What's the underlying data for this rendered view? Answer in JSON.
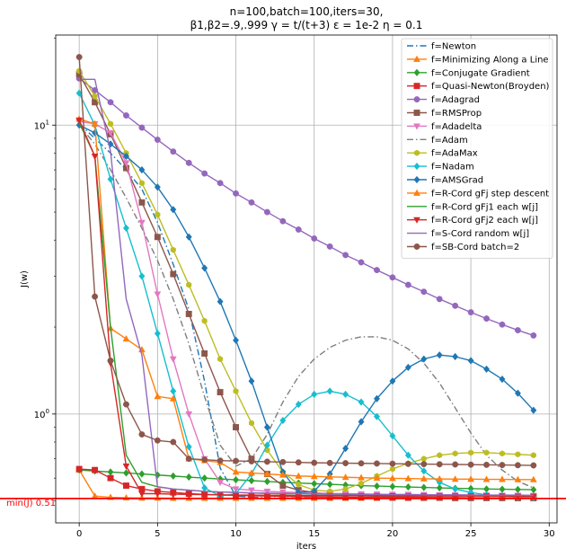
{
  "chart_data": {
    "type": "line",
    "title": [
      "n=100,batch=100,iters=30,",
      "β1,β2=.9,.999 γ = t/(t+3) ε = 1e-2 η = 0.1"
    ],
    "xlabel": "iters",
    "ylabel": "J(w)",
    "xscale": "linear",
    "yscale": "log",
    "xlim": [
      -1.5,
      30.5
    ],
    "ylim": [
      0.42,
      20.5
    ],
    "xticks": [
      0,
      5,
      10,
      15,
      20,
      25,
      30
    ],
    "yticks": [
      1,
      10
    ],
    "ytick_labels": [
      "10^0",
      "10^1"
    ],
    "grid": true,
    "legend_position": "top-right",
    "hline": {
      "y": 0.51,
      "label": "min(J) 0.51",
      "color": "#ff0000"
    },
    "series": [
      {
        "name": "f=Newton",
        "color": "#1f77b4",
        "dash": "dashdot",
        "marker": "none",
        "x": [
          0,
          1,
          2,
          3,
          4,
          5,
          6,
          7,
          8,
          9,
          10,
          11,
          12,
          13,
          14,
          15,
          16,
          17,
          18,
          19,
          20,
          21,
          22,
          23,
          24,
          25,
          26,
          27,
          28,
          29
        ],
        "y": [
          10.1,
          9.0,
          8.0,
          7.0,
          6.0,
          4.6,
          3.3,
          2.3,
          1.3,
          0.65,
          0.52,
          0.515,
          0.513,
          0.512,
          0.512,
          0.512,
          0.511,
          0.511,
          0.511,
          0.511,
          0.511,
          0.511,
          0.511,
          0.511,
          0.511,
          0.511,
          0.511,
          0.511,
          0.511,
          0.511
        ]
      },
      {
        "name": "f=Minimizing Along a Line",
        "color": "#ff7f0e",
        "dash": "solid",
        "marker": "triangle-up",
        "x": [
          0,
          1,
          2,
          3,
          4,
          5,
          6,
          7,
          8,
          9,
          10,
          11,
          12,
          13,
          14,
          15,
          16,
          17,
          18,
          19,
          20,
          21,
          22,
          23,
          24,
          25,
          26,
          27,
          28,
          29
        ],
        "y": [
          0.64,
          0.52,
          0.515,
          0.513,
          0.512,
          0.512,
          0.511,
          0.511,
          0.511,
          0.511,
          0.511,
          0.511,
          0.511,
          0.511,
          0.511,
          0.511,
          0.511,
          0.511,
          0.511,
          0.511,
          0.511,
          0.511,
          0.511,
          0.511,
          0.511,
          0.511,
          0.511,
          0.511,
          0.511,
          0.511
        ]
      },
      {
        "name": "f=Conjugate Gradient",
        "color": "#2ca02c",
        "dash": "solid",
        "marker": "diamond",
        "x": [
          0,
          1,
          2,
          3,
          4,
          5,
          6,
          7,
          8,
          9,
          10,
          11,
          12,
          13,
          14,
          15,
          16,
          17,
          18,
          19,
          20,
          21,
          22,
          23,
          24,
          25,
          26,
          27,
          28,
          29
        ],
        "y": [
          0.64,
          0.635,
          0.63,
          0.625,
          0.62,
          0.615,
          0.61,
          0.605,
          0.6,
          0.596,
          0.592,
          0.588,
          0.584,
          0.58,
          0.577,
          0.574,
          0.571,
          0.568,
          0.565,
          0.563,
          0.561,
          0.559,
          0.557,
          0.555,
          0.553,
          0.552,
          0.55,
          0.549,
          0.548,
          0.547
        ]
      },
      {
        "name": "f=Quasi-Newton(Broyden)",
        "color": "#d62728",
        "dash": "solid",
        "marker": "square",
        "x": [
          0,
          1,
          2,
          3,
          4,
          5,
          6,
          7,
          8,
          9,
          10,
          11,
          12,
          13,
          14,
          15,
          16,
          17,
          18,
          19,
          20,
          21,
          22,
          23,
          24,
          25,
          26,
          27,
          28,
          29
        ],
        "y": [
          0.645,
          0.64,
          0.6,
          0.565,
          0.55,
          0.54,
          0.535,
          0.53,
          0.527,
          0.525,
          0.523,
          0.521,
          0.52,
          0.519,
          0.518,
          0.517,
          0.516,
          0.515,
          0.515,
          0.514,
          0.514,
          0.513,
          0.513,
          0.513,
          0.512,
          0.512,
          0.512,
          0.512,
          0.512,
          0.512
        ]
      },
      {
        "name": "f=Adagrad",
        "color": "#9467bd",
        "dash": "solid",
        "marker": "circle",
        "x": [
          0,
          1,
          2,
          3,
          4,
          5,
          6,
          7,
          8,
          9,
          10,
          11,
          12,
          13,
          14,
          15,
          16,
          17,
          18,
          19,
          20,
          21,
          22,
          23,
          24,
          25,
          26,
          27,
          28,
          29
        ],
        "y": [
          14.5,
          13.2,
          12.0,
          10.8,
          9.8,
          8.9,
          8.1,
          7.4,
          6.8,
          6.3,
          5.8,
          5.4,
          5.0,
          4.65,
          4.35,
          4.05,
          3.8,
          3.55,
          3.35,
          3.15,
          2.97,
          2.8,
          2.65,
          2.5,
          2.37,
          2.25,
          2.14,
          2.04,
          1.95,
          1.87
        ]
      },
      {
        "name": "f=RMSProp",
        "color": "#8c564b",
        "dash": "solid",
        "marker": "square",
        "x": [
          0,
          1,
          2,
          3,
          4,
          5,
          6,
          7,
          8,
          9,
          10,
          11,
          12,
          13,
          14,
          15,
          16,
          17,
          18,
          19,
          20,
          21,
          22,
          23,
          24,
          25,
          26,
          27,
          28,
          29
        ],
        "y": [
          15.0,
          12.0,
          9.3,
          7.1,
          5.4,
          4.1,
          3.05,
          2.22,
          1.62,
          1.19,
          0.9,
          0.7,
          0.62,
          0.565,
          0.545,
          0.535,
          0.528,
          0.524,
          0.521,
          0.519,
          0.517,
          0.516,
          0.515,
          0.514,
          0.514,
          0.513,
          0.513,
          0.513,
          0.512,
          0.512
        ]
      },
      {
        "name": "f=Adadelta",
        "color": "#e377c2",
        "dash": "solid",
        "marker": "triangle-down",
        "x": [
          0,
          1,
          2,
          3,
          4,
          5,
          6,
          7,
          8,
          9,
          10,
          11,
          12,
          13,
          14,
          15,
          16,
          17,
          18,
          19,
          20,
          21,
          22,
          23,
          24,
          25,
          26,
          27,
          28,
          29
        ],
        "y": [
          10.3,
          10.1,
          9.4,
          7.4,
          4.6,
          2.6,
          1.55,
          1.0,
          0.7,
          0.58,
          0.55,
          0.545,
          0.54,
          0.537,
          0.535,
          0.533,
          0.531,
          0.53,
          0.529,
          0.528,
          0.527,
          0.527,
          0.526,
          0.525,
          0.525,
          0.524,
          0.524,
          0.523,
          0.523,
          0.522
        ]
      },
      {
        "name": "f=Adam",
        "color": "#7f7f7f",
        "dash": "dashdot",
        "marker": "none",
        "x": [
          0,
          1,
          2,
          3,
          4,
          5,
          6,
          7,
          8,
          9,
          10,
          11,
          12,
          13,
          14,
          15,
          16,
          17,
          18,
          19,
          20,
          21,
          22,
          23,
          24,
          25,
          26,
          27,
          28,
          29
        ],
        "y": [
          10.0,
          8.6,
          7.0,
          5.6,
          4.4,
          3.4,
          2.5,
          1.75,
          1.15,
          0.78,
          0.66,
          0.7,
          0.85,
          1.1,
          1.35,
          1.55,
          1.7,
          1.8,
          1.85,
          1.85,
          1.8,
          1.68,
          1.5,
          1.28,
          1.05,
          0.86,
          0.72,
          0.64,
          0.585,
          0.555
        ]
      },
      {
        "name": "f=AdaMax",
        "color": "#bcbd22",
        "dash": "solid",
        "marker": "hexagon",
        "x": [
          0,
          1,
          2,
          3,
          4,
          5,
          6,
          7,
          8,
          9,
          10,
          11,
          12,
          13,
          14,
          15,
          16,
          17,
          18,
          19,
          20,
          21,
          22,
          23,
          24,
          25,
          26,
          27,
          28,
          29
        ],
        "y": [
          15.4,
          12.6,
          10.1,
          8.0,
          6.3,
          4.9,
          3.7,
          2.8,
          2.1,
          1.55,
          1.2,
          0.93,
          0.75,
          0.63,
          0.57,
          0.545,
          0.54,
          0.55,
          0.575,
          0.61,
          0.645,
          0.675,
          0.7,
          0.72,
          0.73,
          0.735,
          0.735,
          0.73,
          0.725,
          0.72
        ]
      },
      {
        "name": "f=Nadam",
        "color": "#17becf",
        "dash": "solid",
        "marker": "diamond",
        "x": [
          0,
          1,
          2,
          3,
          4,
          5,
          6,
          7,
          8,
          9,
          10,
          11,
          12,
          13,
          14,
          15,
          16,
          17,
          18,
          19,
          20,
          21,
          22,
          23,
          24,
          25,
          26,
          27,
          28,
          29
        ],
        "y": [
          12.9,
          10.0,
          6.5,
          4.4,
          3.0,
          1.9,
          1.2,
          0.77,
          0.555,
          0.52,
          0.53,
          0.62,
          0.78,
          0.95,
          1.08,
          1.17,
          1.2,
          1.17,
          1.1,
          0.98,
          0.84,
          0.72,
          0.635,
          0.58,
          0.55,
          0.535,
          0.525,
          0.52,
          0.517,
          0.515
        ]
      },
      {
        "name": "f=AMSGrad",
        "color": "#1f77b4",
        "dash": "solid",
        "marker": "diamond",
        "x": [
          0,
          1,
          2,
          3,
          4,
          5,
          6,
          7,
          8,
          9,
          10,
          11,
          12,
          13,
          14,
          15,
          16,
          17,
          18,
          19,
          20,
          21,
          22,
          23,
          24,
          25,
          26,
          27,
          28,
          29
        ],
        "y": [
          10.0,
          9.4,
          8.6,
          7.8,
          7.0,
          6.1,
          5.1,
          4.1,
          3.2,
          2.45,
          1.8,
          1.3,
          0.9,
          0.63,
          0.535,
          0.54,
          0.62,
          0.76,
          0.94,
          1.13,
          1.3,
          1.45,
          1.55,
          1.6,
          1.58,
          1.53,
          1.43,
          1.32,
          1.18,
          1.03
        ]
      },
      {
        "name": "f=R-Cord gFj step descent",
        "color": "#ff7f0e",
        "dash": "solid",
        "marker": "triangle-up",
        "x": [
          0,
          1,
          2,
          3,
          4,
          5,
          6,
          7,
          8,
          9,
          10,
          11,
          12,
          13,
          14,
          15,
          16,
          17,
          18,
          19,
          20,
          21,
          22,
          23,
          24,
          25,
          26,
          27,
          28,
          29
        ],
        "y": [
          10.5,
          10.1,
          1.98,
          1.82,
          1.67,
          1.15,
          1.13,
          0.7,
          0.69,
          0.68,
          0.63,
          0.625,
          0.62,
          0.615,
          0.61,
          0.608,
          0.606,
          0.604,
          0.602,
          0.6,
          0.599,
          0.598,
          0.597,
          0.596,
          0.595,
          0.595,
          0.594,
          0.594,
          0.593,
          0.593
        ]
      },
      {
        "name": "f=R-Cord gFj1 each w[j]",
        "color": "#2ca02c",
        "dash": "solid",
        "marker": "none",
        "x": [
          0,
          1,
          2,
          3,
          4,
          5,
          6,
          7,
          8,
          9,
          10,
          11,
          12,
          13,
          14,
          15,
          16,
          17,
          18,
          19,
          20,
          21,
          22,
          23,
          24,
          25,
          26,
          27,
          28,
          29
        ],
        "y": [
          10.2,
          7.8,
          2.0,
          0.72,
          0.58,
          0.56,
          0.55,
          0.545,
          0.54,
          0.537,
          0.535,
          0.533,
          0.531,
          0.53,
          0.529,
          0.528,
          0.527,
          0.526,
          0.525,
          0.524,
          0.524,
          0.523,
          0.523,
          0.522,
          0.522,
          0.522,
          0.521,
          0.521,
          0.521,
          0.521
        ]
      },
      {
        "name": "f=R-Cord gFj2 each w[j]",
        "color": "#d62728",
        "dash": "solid",
        "marker": "triangle-down",
        "x": [
          0,
          1,
          2,
          3,
          4,
          5,
          6,
          7,
          8,
          9,
          10,
          11,
          12,
          13,
          14,
          15,
          16,
          17,
          18,
          19,
          20,
          21,
          22,
          23,
          24,
          25,
          26,
          27,
          28,
          29
        ],
        "y": [
          10.4,
          7.8,
          1.5,
          0.66,
          0.53,
          0.53,
          0.528,
          0.527,
          0.526,
          0.525,
          0.524,
          0.524,
          0.523,
          0.523,
          0.522,
          0.522,
          0.522,
          0.521,
          0.521,
          0.521,
          0.521,
          0.52,
          0.52,
          0.52,
          0.52,
          0.52,
          0.52,
          0.52,
          0.519,
          0.519
        ]
      },
      {
        "name": "f=S-Cord random w[j]",
        "color": "#9467bd",
        "dash": "solid",
        "marker": "none",
        "x": [
          0,
          1,
          2,
          3,
          4,
          5,
          6,
          7,
          8,
          9,
          10,
          11,
          12,
          13,
          14,
          15,
          16,
          17,
          18,
          19,
          20,
          21,
          22,
          23,
          24,
          25,
          26,
          27,
          28,
          29
        ],
        "y": [
          14.4,
          14.4,
          8.1,
          2.5,
          1.6,
          0.56,
          0.55,
          0.545,
          0.54,
          0.537,
          0.535,
          0.533,
          0.532,
          0.531,
          0.53,
          0.529,
          0.528,
          0.528,
          0.527,
          0.527,
          0.526,
          0.526,
          0.525,
          0.525,
          0.525,
          0.524,
          0.524,
          0.524,
          0.524,
          0.523
        ]
      },
      {
        "name": "f=SB-Cord batch=2",
        "color": "#8c564b",
        "dash": "solid",
        "marker": "circle",
        "x": [
          0,
          1,
          2,
          3,
          4,
          5,
          6,
          7,
          8,
          9,
          10,
          11,
          12,
          13,
          14,
          15,
          16,
          17,
          18,
          19,
          20,
          21,
          22,
          23,
          24,
          25,
          26,
          27,
          28,
          29
        ],
        "y": [
          17.2,
          2.55,
          1.53,
          1.08,
          0.85,
          0.81,
          0.8,
          0.7,
          0.695,
          0.69,
          0.688,
          0.686,
          0.684,
          0.682,
          0.68,
          0.678,
          0.677,
          0.676,
          0.675,
          0.674,
          0.673,
          0.672,
          0.671,
          0.67,
          0.669,
          0.668,
          0.667,
          0.666,
          0.665,
          0.664
        ]
      }
    ]
  }
}
